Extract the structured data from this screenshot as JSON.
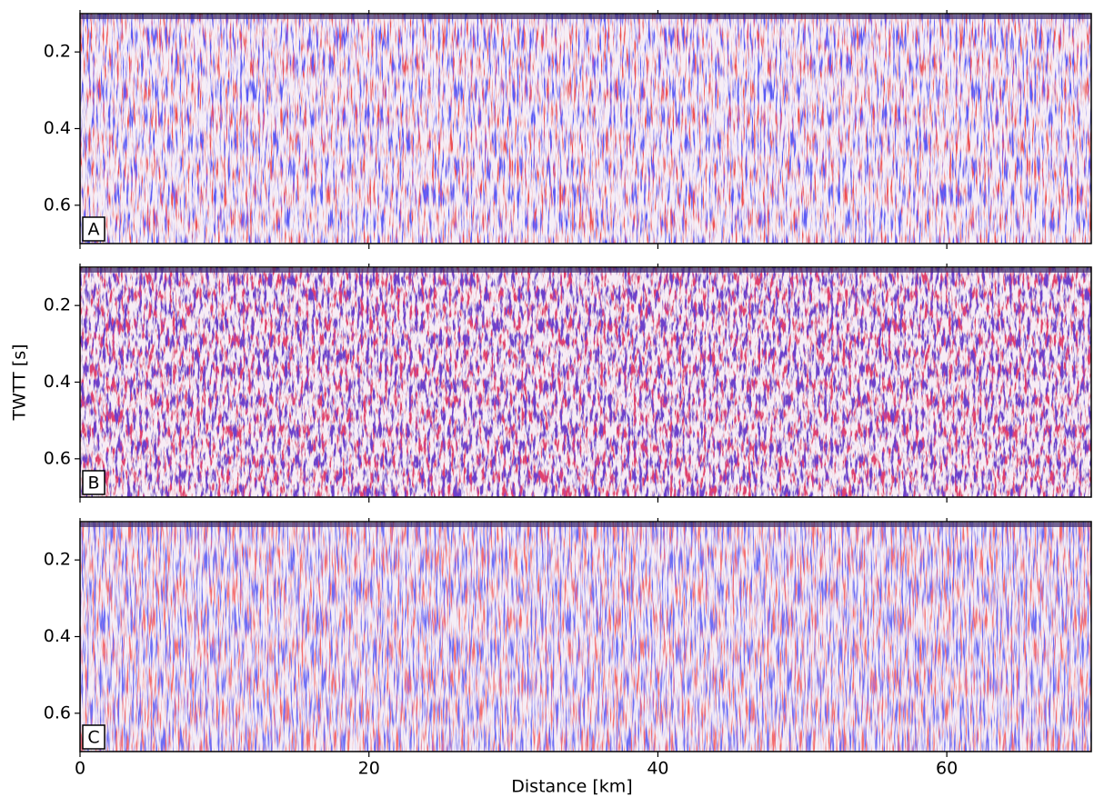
{
  "chart_data": [
    {
      "type": "seismic",
      "panel_label": "A",
      "xlim": [
        0,
        70
      ],
      "ylim": [
        0.7,
        0.1
      ],
      "xticks": [
        0,
        20,
        40,
        60
      ],
      "yticks": [
        0.2,
        0.4,
        0.6
      ]
    },
    {
      "type": "seismic",
      "panel_label": "B",
      "xlim": [
        0,
        70
      ],
      "ylim": [
        0.7,
        0.1
      ],
      "xticks": [
        0,
        20,
        40,
        60
      ],
      "yticks": [
        0.2,
        0.4,
        0.6
      ],
      "ylabel": "TWTT [s]"
    },
    {
      "type": "seismic",
      "panel_label": "C",
      "xlim": [
        0,
        70
      ],
      "ylim": [
        0.7,
        0.1
      ],
      "xticks": [
        0,
        20,
        40,
        60
      ],
      "yticks": [
        0.2,
        0.4,
        0.6
      ],
      "xlabel": "Distance [km]"
    }
  ]
}
